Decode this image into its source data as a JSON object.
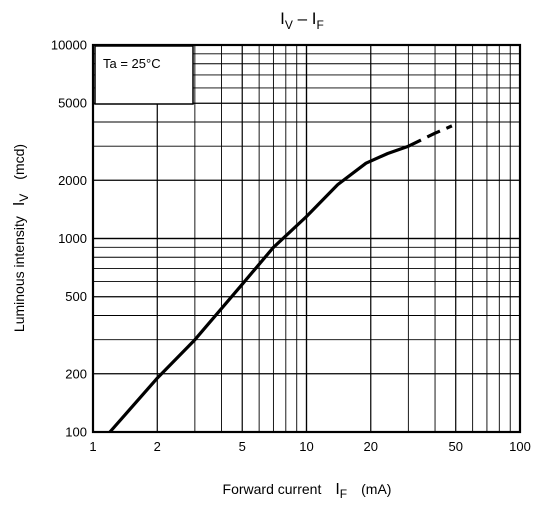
{
  "chart_data": {
    "type": "line",
    "title": {
      "main": "I",
      "main_sub": "V",
      "sep": " – ",
      "second": "I",
      "second_sub": "F"
    },
    "xlabel": {
      "prefix": "Forward current",
      "sym": "I",
      "sub": "F",
      "unit": "(mA)"
    },
    "ylabel": {
      "prefix": "Luminous intensity",
      "sym": "I",
      "sub": "V",
      "unit": "(mcd)"
    },
    "xscale": "log",
    "yscale": "log",
    "xlim": [
      1,
      100
    ],
    "ylim": [
      100,
      10000
    ],
    "xticks": [
      1,
      2,
      5,
      10,
      20,
      50,
      100
    ],
    "xtick_labels": [
      "1",
      "2",
      "5",
      "10",
      "20",
      "50",
      "100"
    ],
    "yticks": [
      100,
      200,
      500,
      1000,
      2000,
      5000,
      10000
    ],
    "ytick_labels": [
      "100",
      "200",
      "500",
      "1000",
      "2000",
      "5000",
      "10000"
    ],
    "grid": true,
    "annotation": "Ta = 25°C",
    "series": [
      {
        "style": "solid",
        "x": [
          1.2,
          2,
          3,
          5,
          7,
          10,
          14,
          19,
          24,
          30
        ],
        "y": [
          100,
          190,
          300,
          580,
          900,
          1300,
          1900,
          2450,
          2750,
          3000
        ]
      },
      {
        "style": "dashed",
        "x": [
          30,
          40,
          48
        ],
        "y": [
          3000,
          3500,
          3820
        ]
      }
    ]
  }
}
